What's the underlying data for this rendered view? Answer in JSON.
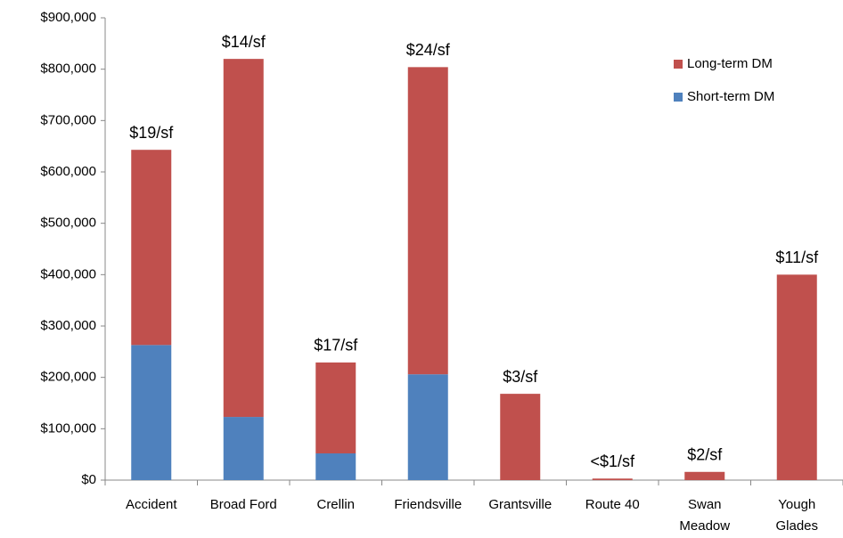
{
  "chart_data": {
    "type": "stacked_bar",
    "categories": [
      "Accident",
      "Broad Ford",
      "Crellin",
      "Friendsville",
      "Grantsville",
      "Route 40",
      "Swan\nMeadow",
      "Yough\nGlades"
    ],
    "series": [
      {
        "name": "Short-term DM",
        "color": "#4f81bd",
        "values": [
          263000,
          123000,
          52000,
          206000,
          0,
          0,
          0,
          0
        ]
      },
      {
        "name": "Long-term DM",
        "color": "#c0504d",
        "values": [
          380000,
          697000,
          177000,
          598000,
          168000,
          3000,
          16000,
          400000
        ]
      }
    ],
    "annotations": [
      "$19/sf",
      "$14/sf",
      "$17/sf",
      "$24/sf",
      "$3/sf",
      "<$1/sf",
      "$2/sf",
      "$11/sf"
    ],
    "ylim": [
      0,
      900000
    ],
    "yticks": [
      {
        "value": 0,
        "label": "$0"
      },
      {
        "value": 100000,
        "label": "$100,000"
      },
      {
        "value": 200000,
        "label": "$200,000"
      },
      {
        "value": 300000,
        "label": "$300,000"
      },
      {
        "value": 400000,
        "label": "$400,000"
      },
      {
        "value": 500000,
        "label": "$500,000"
      },
      {
        "value": 600000,
        "label": "$600,000"
      },
      {
        "value": 700000,
        "label": "$700,000"
      },
      {
        "value": 800000,
        "label": "$800,000"
      },
      {
        "value": 900000,
        "label": "$900,000"
      }
    ],
    "legend": "top-right"
  }
}
